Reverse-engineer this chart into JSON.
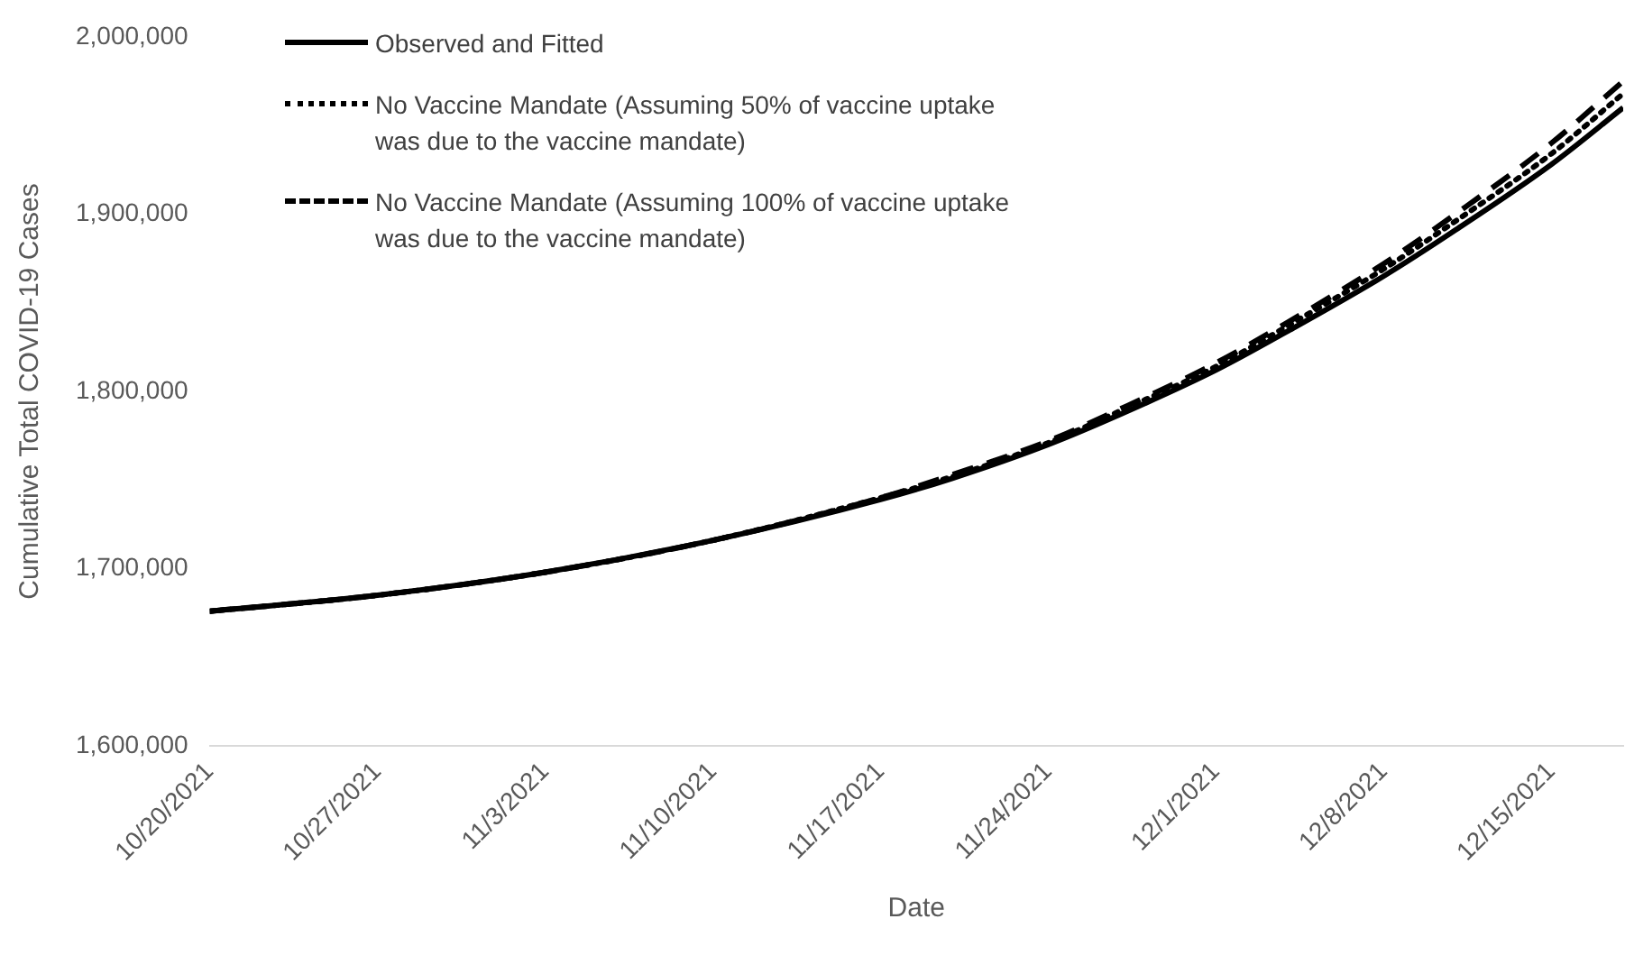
{
  "chart_data": {
    "type": "line",
    "xlabel": "Date",
    "ylabel": "Cumulative Total COVID-19 Cases",
    "x": [
      "2021-10-20",
      "2021-10-27",
      "2021-11-03",
      "2021-11-10",
      "2021-11-17",
      "2021-11-20",
      "2021-11-24",
      "2021-11-27",
      "2021-12-01",
      "2021-12-04",
      "2021-12-08",
      "2021-12-11",
      "2021-12-15",
      "2021-12-18"
    ],
    "series": [
      {
        "name": "Observed and Fitted",
        "color": "#000000",
        "line_style": "solid",
        "values": [
          1676000,
          1685000,
          1698000,
          1716000,
          1739000,
          1751000,
          1770000,
          1787000,
          1812000,
          1834000,
          1865000,
          1891000,
          1928000,
          1960000
        ]
      },
      {
        "name": "No Vaccine Mandate (Assuming 50% of vaccine uptake was due to the vaccine mandate)",
        "color": "#000000",
        "line_style": "dotted",
        "values": [
          1676000,
          1685000,
          1698000,
          1716000,
          1740000,
          1752000,
          1771000,
          1789000,
          1814000,
          1837000,
          1869000,
          1896000,
          1934000,
          1968000
        ]
      },
      {
        "name": "No Vaccine Mandate (Assuming 100% of vaccine uptake was due to the vaccine mandate)",
        "color": "#000000",
        "line_style": "dashed",
        "values": [
          1676000,
          1685000,
          1698000,
          1716000,
          1740000,
          1753000,
          1772000,
          1790000,
          1816000,
          1839000,
          1872000,
          1900000,
          1940000,
          1975000
        ]
      }
    ],
    "xticks": [
      {
        "value": "2021-10-20",
        "label": "10/20/2021"
      },
      {
        "value": "2021-10-27",
        "label": "10/27/2021"
      },
      {
        "value": "2021-11-03",
        "label": "11/3/2021"
      },
      {
        "value": "2021-11-10",
        "label": "11/10/2021"
      },
      {
        "value": "2021-11-17",
        "label": "11/17/2021"
      },
      {
        "value": "2021-11-24",
        "label": "11/24/2021"
      },
      {
        "value": "2021-12-01",
        "label": "12/1/2021"
      },
      {
        "value": "2021-12-08",
        "label": "12/8/2021"
      },
      {
        "value": "2021-12-15",
        "label": "12/15/2021"
      }
    ],
    "xlim": [
      "2021-10-20",
      "2021-12-18"
    ],
    "ylim": [
      1600000,
      2000000
    ],
    "yticks": [
      {
        "value": 1600000,
        "label": "1,600,000"
      },
      {
        "value": 1700000,
        "label": "1,700,000"
      },
      {
        "value": 1800000,
        "label": "1,800,000"
      },
      {
        "value": 1900000,
        "label": "1,900,000"
      },
      {
        "value": 2000000,
        "label": "2,000,000"
      }
    ],
    "grid": false,
    "legend": "top left",
    "marker": "none"
  }
}
